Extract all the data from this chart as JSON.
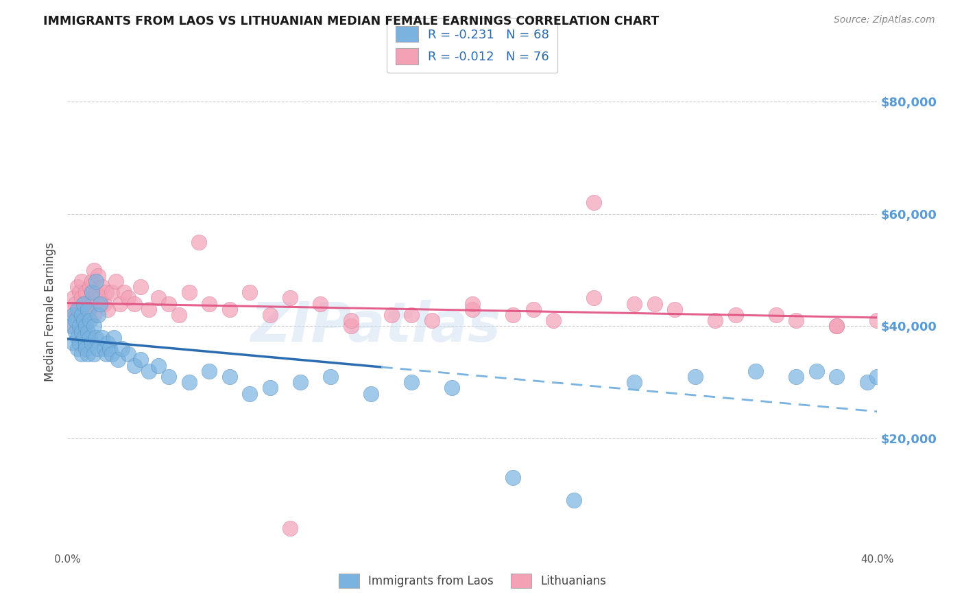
{
  "title": "IMMIGRANTS FROM LAOS VS LITHUANIAN MEDIAN FEMALE EARNINGS CORRELATION CHART",
  "source": "Source: ZipAtlas.com",
  "ylabel": "Median Female Earnings",
  "x_min": 0.0,
  "x_max": 0.4,
  "y_min": 0,
  "y_max": 85000,
  "y_ticks": [
    20000,
    40000,
    60000,
    80000
  ],
  "y_tick_labels": [
    "$20,000",
    "$40,000",
    "$60,000",
    "$80,000"
  ],
  "x_ticks": [
    0.0,
    0.05,
    0.1,
    0.15,
    0.2,
    0.25,
    0.3,
    0.35,
    0.4
  ],
  "laos_color": "#7ab3e0",
  "laos_edge_color": "#5a93c0",
  "lithuanian_color": "#f4a0b5",
  "lithuanian_edge_color": "#d480a0",
  "laos_R": -0.231,
  "laos_N": 68,
  "lithuanian_R": -0.012,
  "lithuanian_N": 76,
  "laos_line_color": "#2b6cb0",
  "laos_dash_color": "#7ab3e0",
  "lith_line_color": "#e05080",
  "watermark": "ZIPatlas",
  "legend_label_color": "#2b6cb0",
  "laos_scatter_x": [
    0.002,
    0.003,
    0.003,
    0.004,
    0.004,
    0.005,
    0.005,
    0.005,
    0.006,
    0.006,
    0.007,
    0.007,
    0.007,
    0.008,
    0.008,
    0.008,
    0.009,
    0.009,
    0.009,
    0.01,
    0.01,
    0.01,
    0.011,
    0.011,
    0.012,
    0.012,
    0.013,
    0.013,
    0.014,
    0.014,
    0.015,
    0.015,
    0.016,
    0.017,
    0.018,
    0.019,
    0.02,
    0.021,
    0.022,
    0.023,
    0.025,
    0.027,
    0.03,
    0.033,
    0.036,
    0.04,
    0.045,
    0.05,
    0.06,
    0.07,
    0.08,
    0.09,
    0.1,
    0.115,
    0.13,
    0.15,
    0.17,
    0.19,
    0.22,
    0.25,
    0.28,
    0.31,
    0.34,
    0.36,
    0.37,
    0.38,
    0.395,
    0.4
  ],
  "laos_scatter_y": [
    40000,
    42000,
    37000,
    39000,
    41000,
    38000,
    43000,
    36000,
    40000,
    37000,
    42000,
    39000,
    35000,
    41000,
    38000,
    44000,
    37000,
    40000,
    36000,
    39000,
    43000,
    35000,
    41000,
    38000,
    46000,
    37000,
    40000,
    35000,
    48000,
    38000,
    42000,
    36000,
    44000,
    38000,
    36000,
    35000,
    37000,
    36000,
    35000,
    38000,
    34000,
    36000,
    35000,
    33000,
    34000,
    32000,
    33000,
    31000,
    30000,
    32000,
    31000,
    28000,
    29000,
    30000,
    31000,
    28000,
    30000,
    29000,
    13000,
    9000,
    30000,
    31000,
    32000,
    31000,
    32000,
    31000,
    30000,
    31000
  ],
  "lithuanian_scatter_x": [
    0.002,
    0.003,
    0.003,
    0.004,
    0.004,
    0.005,
    0.005,
    0.006,
    0.006,
    0.006,
    0.007,
    0.007,
    0.007,
    0.008,
    0.008,
    0.009,
    0.009,
    0.009,
    0.01,
    0.01,
    0.011,
    0.011,
    0.012,
    0.012,
    0.013,
    0.013,
    0.014,
    0.015,
    0.016,
    0.017,
    0.018,
    0.019,
    0.02,
    0.022,
    0.024,
    0.026,
    0.028,
    0.03,
    0.033,
    0.036,
    0.04,
    0.045,
    0.05,
    0.055,
    0.06,
    0.065,
    0.07,
    0.08,
    0.09,
    0.1,
    0.11,
    0.125,
    0.14,
    0.16,
    0.18,
    0.2,
    0.22,
    0.24,
    0.26,
    0.28,
    0.3,
    0.33,
    0.36,
    0.38,
    0.4,
    0.41,
    0.38,
    0.35,
    0.32,
    0.29,
    0.26,
    0.23,
    0.2,
    0.17,
    0.14,
    0.11
  ],
  "lithuanian_scatter_y": [
    43000,
    45000,
    40000,
    44000,
    42000,
    47000,
    41000,
    46000,
    43000,
    39000,
    45000,
    42000,
    48000,
    44000,
    41000,
    46000,
    43000,
    38000,
    44000,
    42000,
    47000,
    43000,
    48000,
    44000,
    50000,
    42000,
    46000,
    49000,
    45000,
    47000,
    44000,
    46000,
    43000,
    46000,
    48000,
    44000,
    46000,
    45000,
    44000,
    47000,
    43000,
    45000,
    44000,
    42000,
    46000,
    55000,
    44000,
    43000,
    46000,
    42000,
    45000,
    44000,
    40000,
    42000,
    41000,
    43000,
    42000,
    41000,
    62000,
    44000,
    43000,
    42000,
    41000,
    40000,
    41000,
    40000,
    40000,
    42000,
    41000,
    44000,
    45000,
    43000,
    44000,
    42000,
    41000,
    4000
  ]
}
